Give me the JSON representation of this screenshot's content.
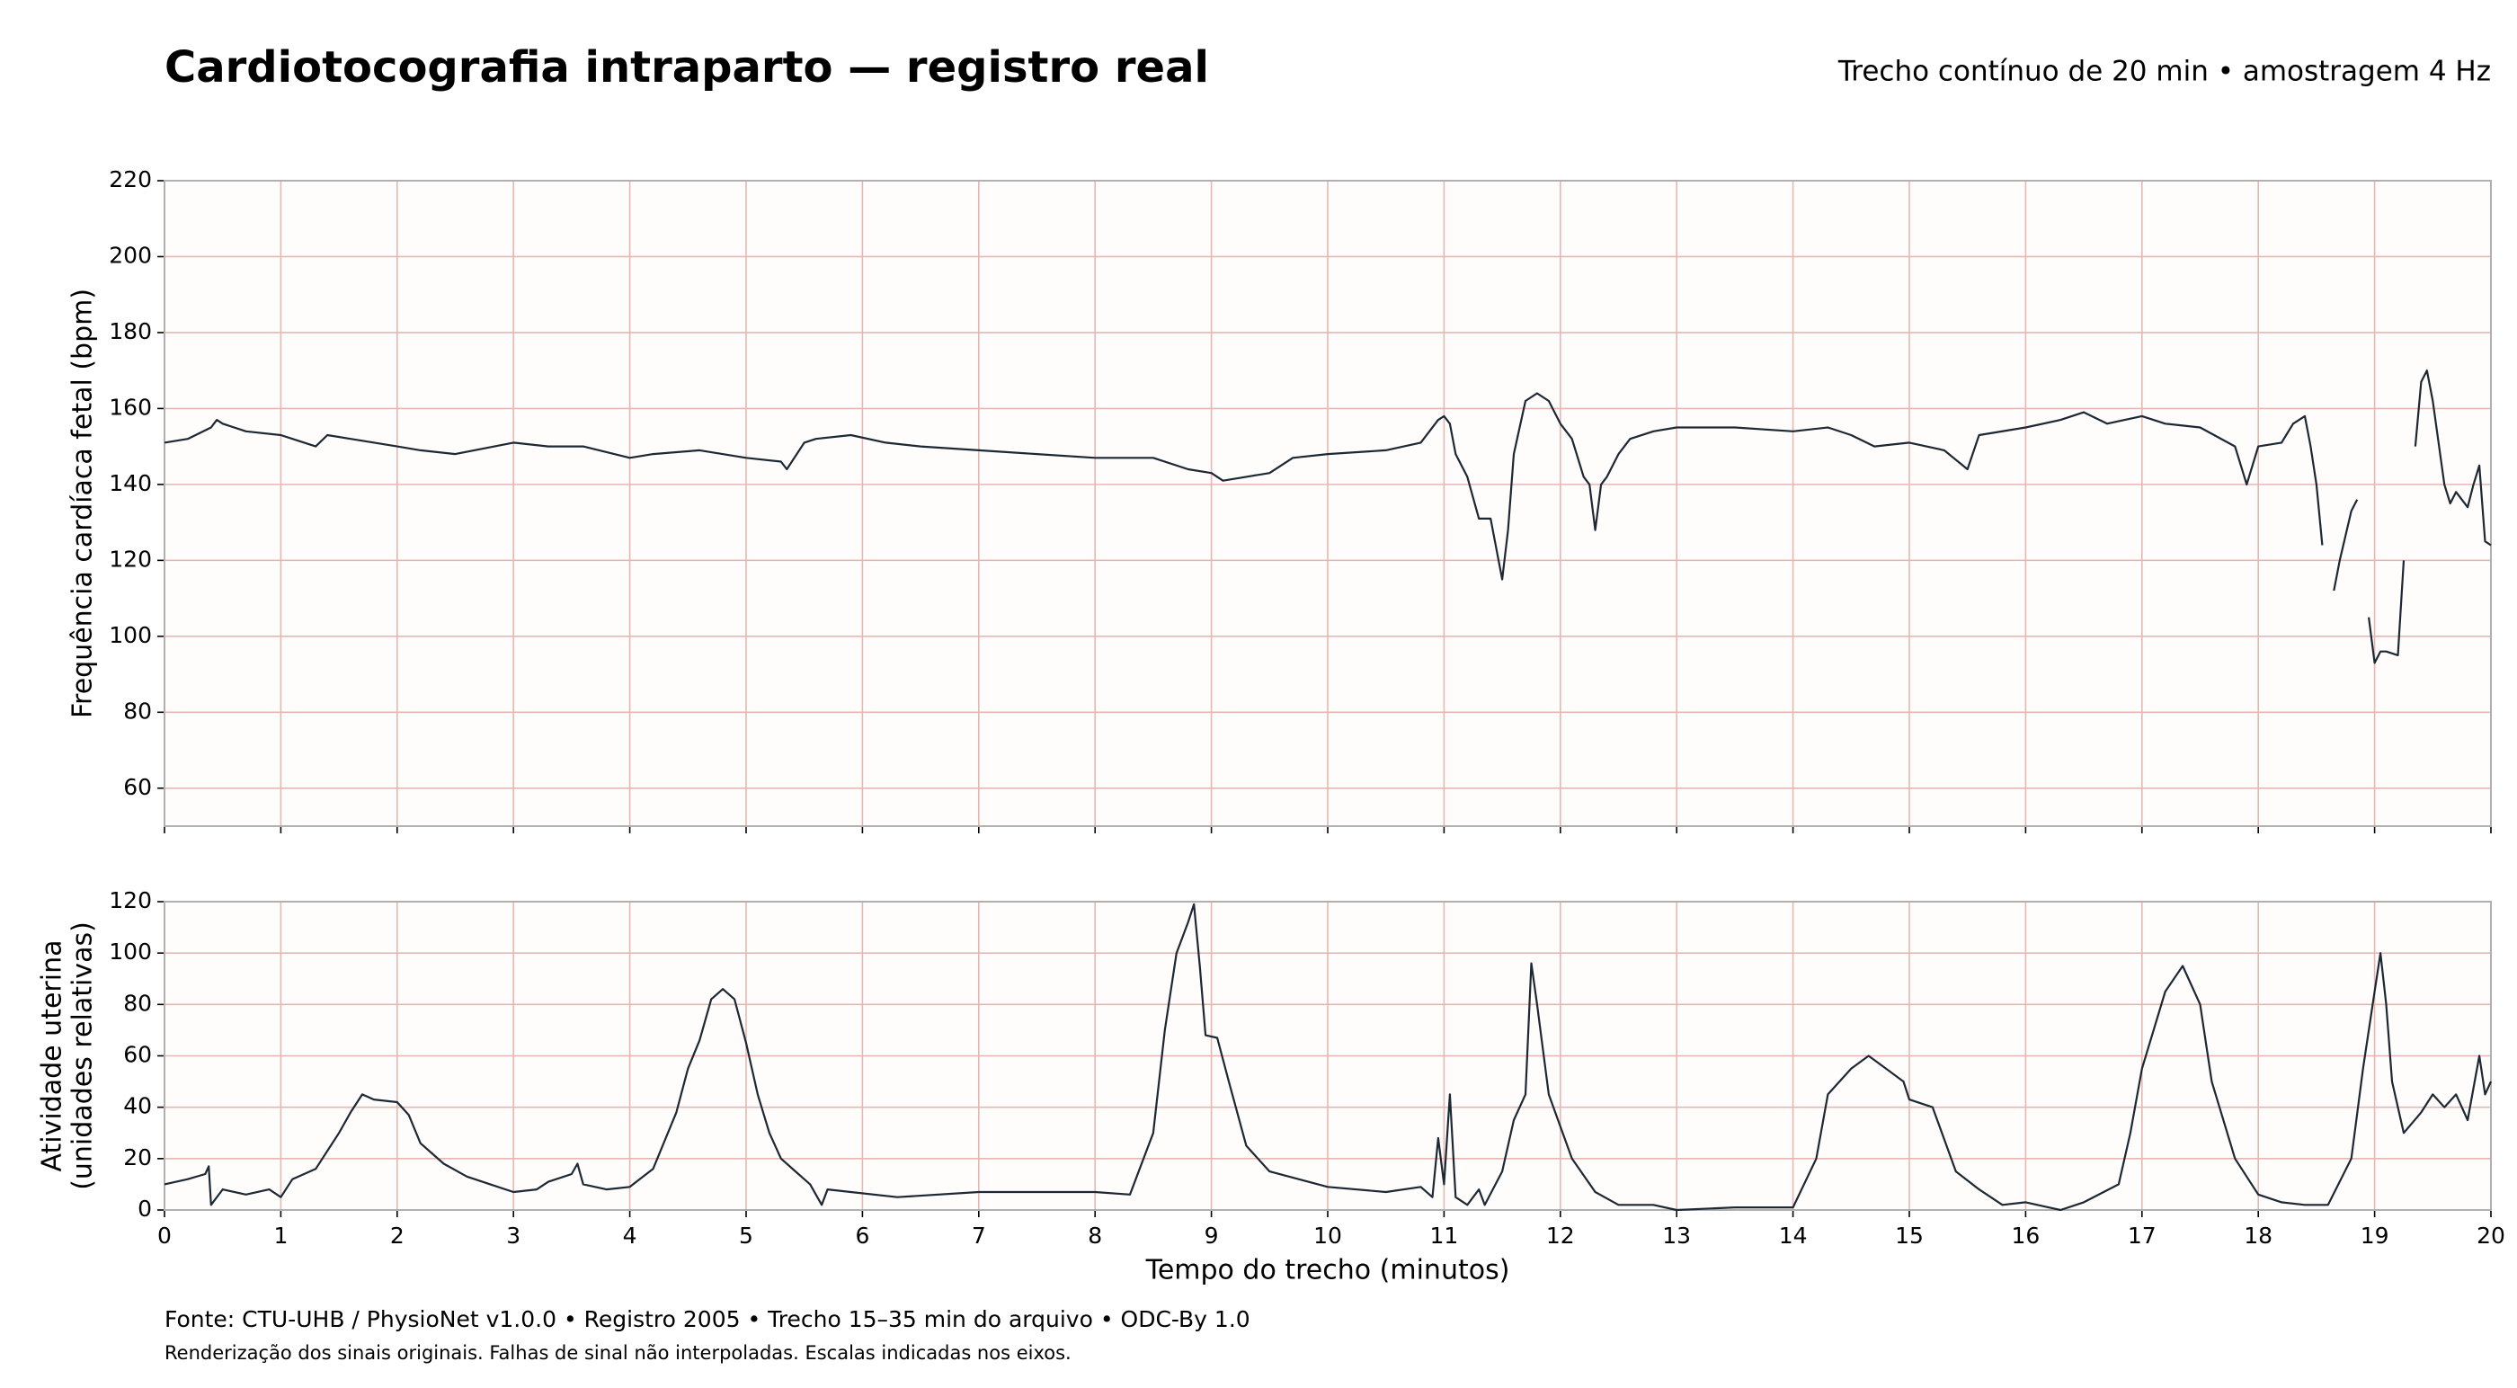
{
  "title": "Cardiotocografia intraparto — registro real",
  "subtitle": "Trecho contínuo de 20 min • amostragem 4 Hz",
  "footer": [
    "Fonte: CTU-UHB / PhysioNet v1.0.0 • Registro 2005 • Trecho 15–35 min do arquivo • ODC-By 1.0",
    "Renderização dos sinais originais. Falhas de sinal não interpoladas. Escalas indicadas nos eixos."
  ],
  "chart_data": [
    {
      "type": "line",
      "ylabel": [
        "Frequência cardíaca fetal (bpm)"
      ],
      "xlim": [
        0,
        20
      ],
      "xticks": [
        0,
        1,
        2,
        3,
        4,
        5,
        6,
        7,
        8,
        9,
        10,
        11,
        12,
        13,
        14,
        15,
        16,
        17,
        18,
        19,
        20
      ],
      "xtick_labels": false,
      "ylim": [
        50,
        220
      ],
      "yticks": [
        60,
        80,
        100,
        120,
        140,
        160,
        180,
        200,
        220
      ],
      "grid": true,
      "x": [
        0,
        0.2,
        0.4,
        0.45,
        0.5,
        0.7,
        1.0,
        1.1,
        1.3,
        1.4,
        1.6,
        2.0,
        2.2,
        2.5,
        3.0,
        3.3,
        3.6,
        4.0,
        4.2,
        4.6,
        5.0,
        5.3,
        5.35,
        5.5,
        5.6,
        5.9,
        6.2,
        6.5,
        7.0,
        7.5,
        8.0,
        8.5,
        8.8,
        9.0,
        9.1,
        9.3,
        9.5,
        9.7,
        10.0,
        10.5,
        10.8,
        10.95,
        11.0,
        11.05,
        11.1,
        11.2,
        11.3,
        11.4,
        11.5,
        11.55,
        11.6,
        11.7,
        11.8,
        11.9,
        12.0,
        12.1,
        12.2,
        12.25,
        12.3,
        12.35,
        12.4,
        12.5,
        12.6,
        12.8,
        13.0,
        13.5,
        14.0,
        14.3,
        14.5,
        14.7,
        15.0,
        15.3,
        15.5,
        15.6,
        16.0,
        16.3,
        16.5,
        16.7,
        17.0,
        17.2,
        17.5,
        17.8,
        17.9,
        18.0,
        18.2,
        18.3,
        18.4,
        18.45,
        18.5,
        18.55,
        18.6,
        18.65,
        18.7,
        18.8,
        18.85,
        18.9,
        18.95,
        19.0,
        19.05,
        19.1,
        19.2,
        19.25,
        19.3,
        19.35,
        19.4,
        19.45,
        19.5,
        19.6,
        19.65,
        19.7,
        19.8,
        19.85,
        19.9,
        19.95,
        20
      ],
      "series": [
        {
          "color": "#1c2833",
          "values": [
            151,
            152,
            155,
            157,
            156,
            154,
            153,
            152,
            150,
            153,
            152,
            150,
            149,
            148,
            151,
            150,
            150,
            147,
            148,
            149,
            147,
            146,
            144,
            151,
            152,
            153,
            151,
            150,
            149,
            148,
            147,
            147,
            144,
            143,
            141,
            142,
            143,
            147,
            148,
            149,
            151,
            157,
            158,
            156,
            148,
            142,
            131,
            131,
            115,
            128,
            148,
            162,
            164,
            162,
            156,
            152,
            142,
            140,
            128,
            140,
            142,
            148,
            152,
            154,
            155,
            155,
            154,
            155,
            153,
            150,
            151,
            149,
            144,
            153,
            155,
            157,
            159,
            156,
            158,
            156,
            155,
            150,
            140,
            150,
            151,
            156,
            158,
            150,
            140,
            124,
            null,
            112,
            120,
            133,
            136,
            null,
            105,
            93,
            96,
            96,
            95,
            120,
            null,
            150,
            167,
            170,
            162,
            140,
            135,
            138,
            134,
            140,
            145,
            125,
            124
          ]
        }
      ]
    },
    {
      "type": "line",
      "ylabel": [
        "Atividade uterina",
        "(unidades relativas)"
      ],
      "xlabel": "Tempo do trecho (minutos)",
      "xlim": [
        0,
        20
      ],
      "xticks": [
        0,
        1,
        2,
        3,
        4,
        5,
        6,
        7,
        8,
        9,
        10,
        11,
        12,
        13,
        14,
        15,
        16,
        17,
        18,
        19,
        20
      ],
      "xtick_labels": true,
      "ylim": [
        0,
        120
      ],
      "yticks": [
        0,
        20,
        40,
        60,
        80,
        100,
        120
      ],
      "grid": true,
      "x": [
        0,
        0.2,
        0.35,
        0.38,
        0.4,
        0.5,
        0.7,
        0.9,
        1.0,
        1.1,
        1.3,
        1.5,
        1.6,
        1.7,
        1.8,
        2.0,
        2.1,
        2.2,
        2.4,
        2.6,
        2.8,
        3.0,
        3.2,
        3.3,
        3.5,
        3.55,
        3.6,
        3.8,
        4.0,
        4.2,
        4.4,
        4.5,
        4.6,
        4.7,
        4.8,
        4.9,
        5.0,
        5.1,
        5.2,
        5.3,
        5.45,
        5.55,
        5.65,
        5.7,
        5.9,
        6.3,
        7.0,
        7.5,
        8.0,
        8.3,
        8.5,
        8.6,
        8.7,
        8.8,
        8.85,
        8.9,
        8.95,
        9.05,
        9.15,
        9.3,
        9.5,
        10.0,
        10.5,
        10.8,
        10.9,
        10.95,
        11.0,
        11.05,
        11.1,
        11.2,
        11.3,
        11.35,
        11.5,
        11.6,
        11.7,
        11.75,
        11.8,
        11.9,
        12.1,
        12.3,
        12.5,
        12.8,
        13.0,
        13.5,
        14.0,
        14.2,
        14.3,
        14.5,
        14.65,
        14.8,
        14.95,
        15.0,
        15.2,
        15.4,
        15.6,
        15.8,
        16.0,
        16.3,
        16.5,
        16.8,
        16.9,
        17.0,
        17.2,
        17.35,
        17.5,
        17.6,
        17.8,
        18.0,
        18.2,
        18.4,
        18.6,
        18.8,
        18.9,
        19.0,
        19.05,
        19.1,
        19.15,
        19.25,
        19.4,
        19.5,
        19.6,
        19.7,
        19.8,
        19.9,
        19.95,
        20
      ],
      "series": [
        {
          "color": "#1c2833",
          "values": [
            10,
            12,
            14,
            17,
            2,
            8,
            6,
            8,
            5,
            12,
            16,
            30,
            38,
            45,
            43,
            42,
            37,
            26,
            18,
            13,
            10,
            7,
            8,
            11,
            14,
            18,
            10,
            8,
            9,
            16,
            38,
            55,
            66,
            82,
            86,
            82,
            65,
            45,
            30,
            20,
            14,
            10,
            2,
            8,
            7,
            5,
            7,
            7,
            7,
            6,
            30,
            70,
            100,
            112,
            119,
            95,
            68,
            67,
            50,
            25,
            15,
            9,
            7,
            9,
            5,
            28,
            10,
            45,
            5,
            2,
            8,
            2,
            15,
            35,
            45,
            96,
            80,
            45,
            20,
            7,
            2,
            2,
            0,
            1,
            1,
            20,
            45,
            55,
            60,
            55,
            50,
            43,
            40,
            15,
            8,
            2,
            3,
            0,
            3,
            10,
            30,
            55,
            85,
            95,
            80,
            50,
            20,
            6,
            3,
            2,
            2,
            20,
            55,
            85,
            100,
            80,
            50,
            30,
            38,
            45,
            40,
            45,
            35,
            60,
            45,
            50
          ]
        }
      ]
    }
  ]
}
